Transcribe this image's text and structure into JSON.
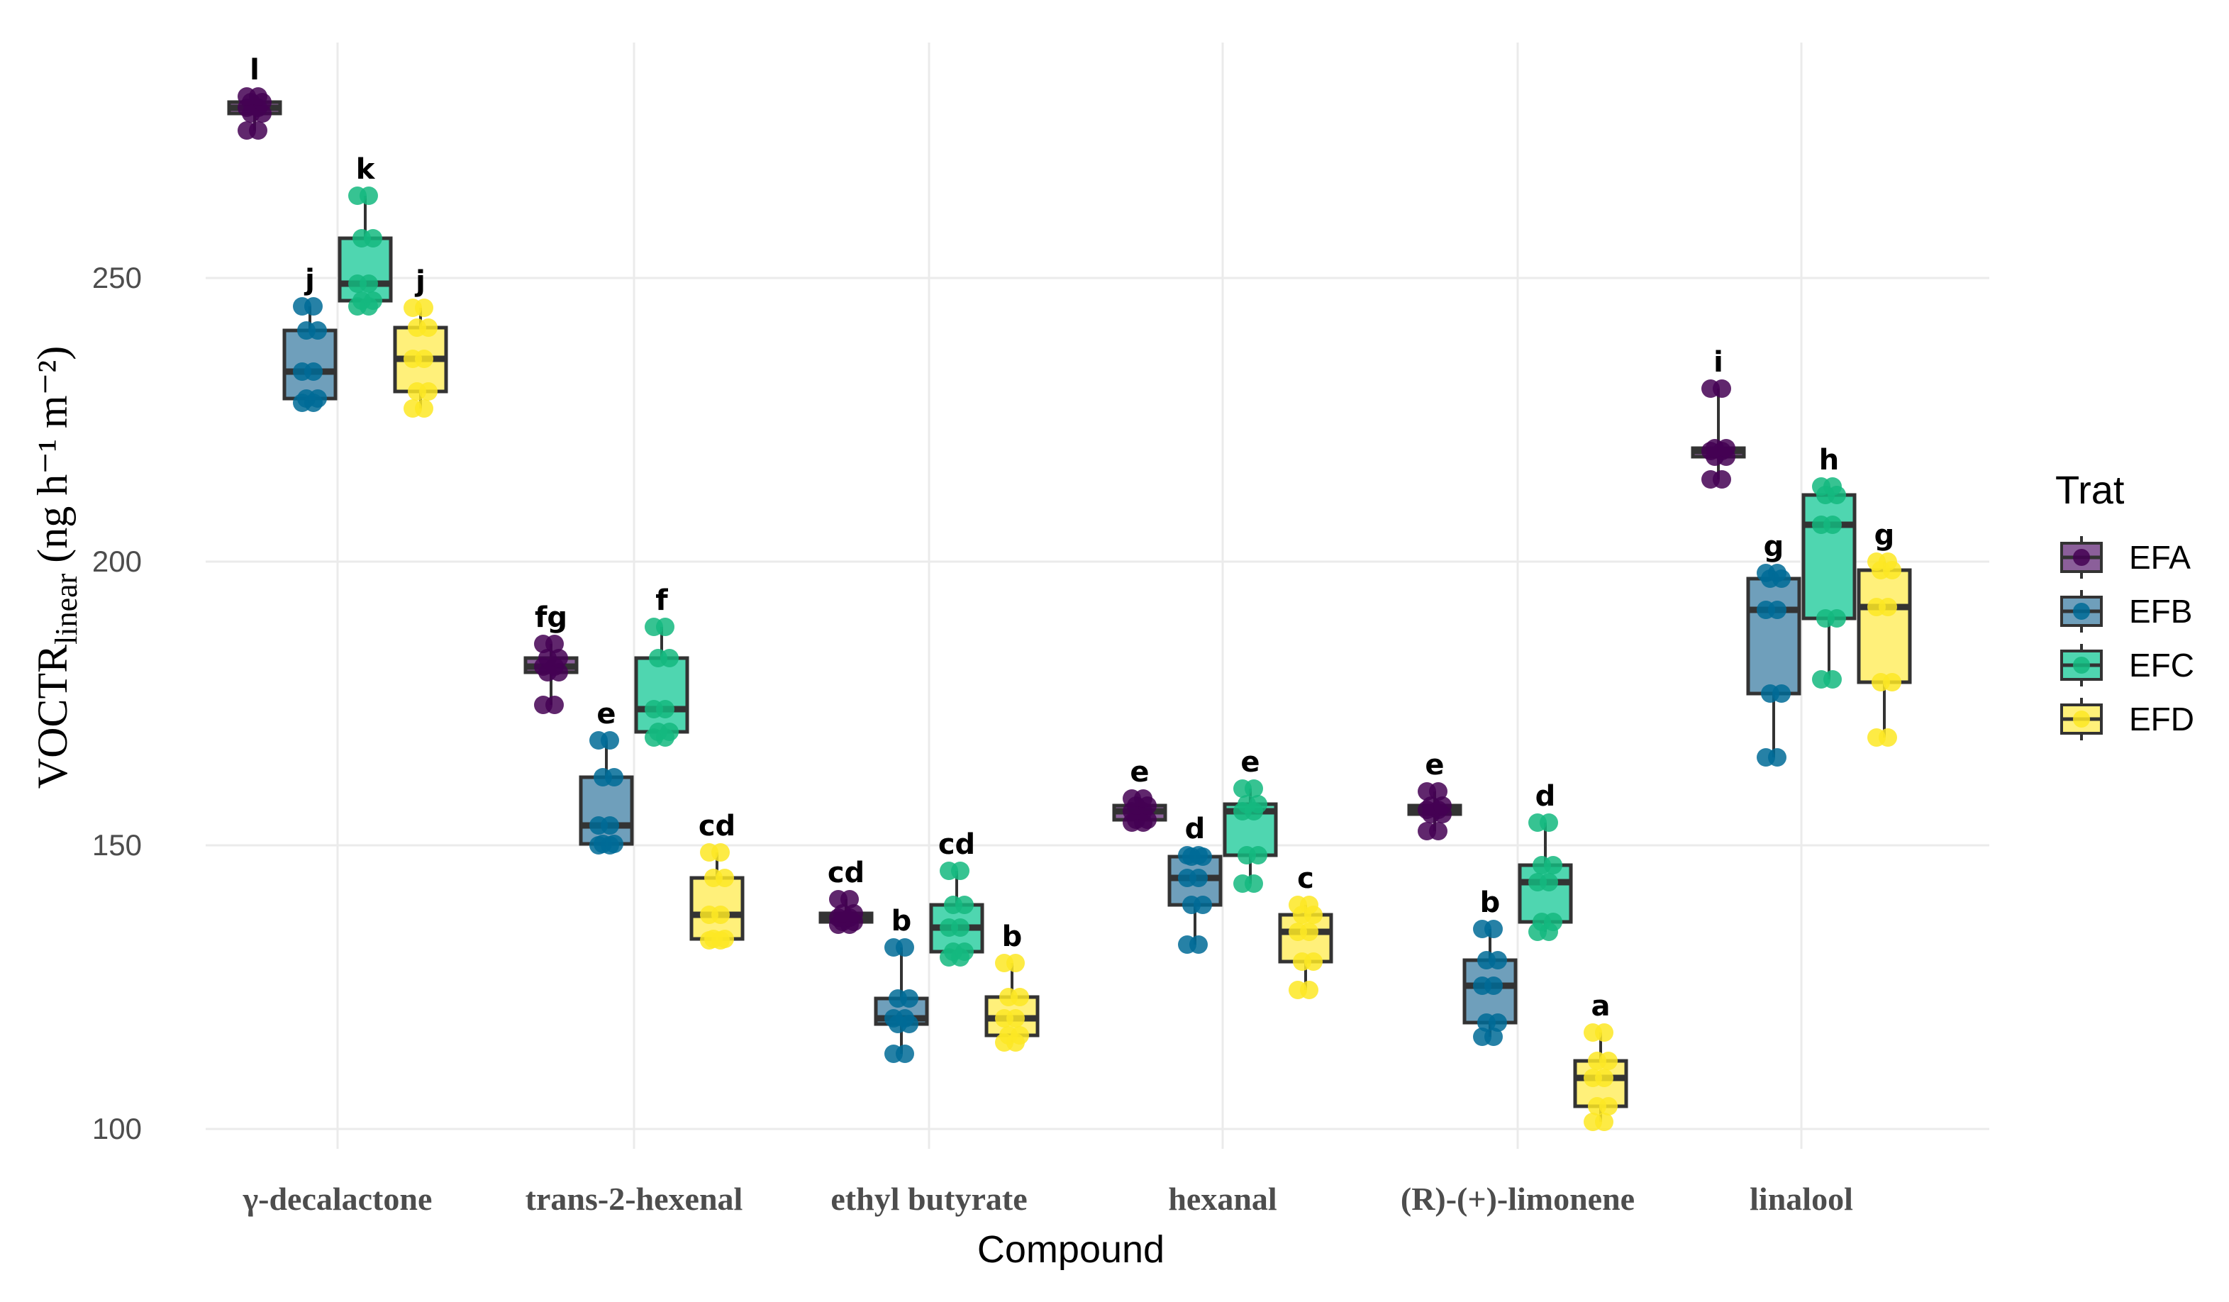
{
  "chart_data": {
    "type": "box",
    "xlabel": "Compound",
    "ylabel_main": "VOCTR",
    "ylabel_sub": "linear",
    "ylabel_units": " (ng h⁻¹ m⁻²)",
    "ylim": [
      96.5,
      291.5
    ],
    "yticks": [
      100,
      150,
      200,
      250
    ],
    "grid": true,
    "legend": {
      "title": "Trat",
      "position": "right"
    },
    "series": [
      {
        "name": "EFA",
        "color": "#440154"
      },
      {
        "name": "EFB",
        "color": "#006b96"
      },
      {
        "name": "EFC",
        "color": "#14b87f"
      },
      {
        "name": "EFD",
        "color": "#fde725"
      }
    ],
    "fills": [
      "#8b5f9a",
      "#6f9fbb",
      "#4fd6b0",
      "#fff07a"
    ],
    "categories": [
      "γ-decalactone",
      "trans-2-hexenal",
      "ethyl butyrate",
      "hexanal",
      "(R)-(+)-limonene",
      "linalool"
    ],
    "boxes": [
      [
        {
          "min": 276,
          "q1": 279,
          "median": 280,
          "q3": 281,
          "max": 282,
          "letter": "l"
        },
        {
          "min": 228,
          "q1": 228.75,
          "median": 233.5,
          "q3": 240.75,
          "max": 245,
          "letter": "j"
        },
        {
          "min": 245,
          "q1": 246,
          "median": 249,
          "q3": 257,
          "max": 264.5,
          "letter": "k"
        },
        {
          "min": 227,
          "q1": 230,
          "median": 235.75,
          "q3": 241.25,
          "max": 244.75,
          "letter": "j"
        }
      ],
      [
        {
          "min": 174.75,
          "q1": 180.5,
          "median": 181.5,
          "q3": 183,
          "max": 185.5,
          "letter": "fg"
        },
        {
          "min": 150,
          "q1": 150.25,
          "median": 153.5,
          "q3": 162,
          "max": 168.5,
          "letter": "e"
        },
        {
          "min": 169,
          "q1": 170,
          "median": 174,
          "q3": 183,
          "max": 188.5,
          "letter": "f"
        },
        {
          "min": 133.25,
          "q1": 133.5,
          "median": 137.75,
          "q3": 144.25,
          "max": 148.75,
          "letter": "cd"
        }
      ],
      [
        {
          "min": 136,
          "q1": 136.5,
          "median": 137.25,
          "q3": 138,
          "max": 140.5,
          "letter": "cd"
        },
        {
          "min": 113.25,
          "q1": 118.5,
          "median": 119.5,
          "q3": 123,
          "max": 132,
          "letter": "b"
        },
        {
          "min": 130.25,
          "q1": 131.25,
          "median": 135.5,
          "q3": 139.5,
          "max": 145.5,
          "letter": "cd"
        },
        {
          "min": 115.25,
          "q1": 116.5,
          "median": 119.5,
          "q3": 123.25,
          "max": 129.25,
          "letter": "b"
        }
      ],
      [
        {
          "min": 154,
          "q1": 154.5,
          "median": 156,
          "q3": 157,
          "max": 158.25,
          "letter": "e"
        },
        {
          "min": 132.5,
          "q1": 139.5,
          "median": 144.25,
          "q3": 148,
          "max": 148.25,
          "letter": "d"
        },
        {
          "min": 143.25,
          "q1": 148.25,
          "median": 156,
          "q3": 157.25,
          "max": 160,
          "letter": "e"
        },
        {
          "min": 124.5,
          "q1": 129.5,
          "median": 134.75,
          "q3": 137.75,
          "max": 139.5,
          "letter": "c"
        }
      ],
      [
        {
          "min": 152.5,
          "q1": 155.5,
          "median": 156.25,
          "q3": 157,
          "max": 159.5,
          "letter": "e"
        },
        {
          "min": 116.25,
          "q1": 118.75,
          "median": 125.25,
          "q3": 129.75,
          "max": 135.25,
          "letter": "b"
        },
        {
          "min": 134.75,
          "q1": 136.5,
          "median": 143.5,
          "q3": 146.5,
          "max": 154,
          "letter": "d"
        },
        {
          "min": 101.25,
          "q1": 104,
          "median": 109,
          "q3": 112,
          "max": 117,
          "letter": "a"
        }
      ],
      [
        {
          "min": 214.5,
          "q1": 218.5,
          "median": 219.5,
          "q3": 220,
          "max": 230.5,
          "letter": "i"
        },
        {
          "min": 165.5,
          "q1": 176.75,
          "median": 191.5,
          "q3": 197,
          "max": 198,
          "letter": "g"
        },
        {
          "min": 179.25,
          "q1": 190,
          "median": 206.5,
          "q3": 211.75,
          "max": 213.25,
          "letter": "h"
        },
        {
          "min": 169,
          "q1": 178.75,
          "median": 192,
          "q3": 198.5,
          "max": 200,
          "letter": "g"
        }
      ]
    ]
  }
}
